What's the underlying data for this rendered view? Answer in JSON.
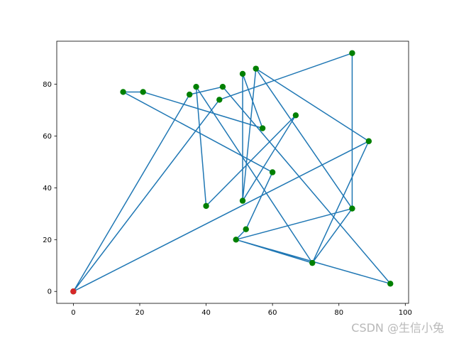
{
  "chart_data": {
    "type": "line",
    "title": "",
    "xlabel": "",
    "ylabel": "",
    "xlim": [
      -5,
      101
    ],
    "ylim": [
      -4.6,
      96.6
    ],
    "x_ticks": [
      0,
      20,
      40,
      60,
      80,
      100
    ],
    "y_ticks": [
      0,
      20,
      40,
      60,
      80
    ],
    "grid": false,
    "legend": "none",
    "series": [
      {
        "line_color": "#1f77b4",
        "point_color": "#008000",
        "points": [
          [
            0,
            0
          ],
          [
            89,
            58
          ],
          [
            72,
            11
          ],
          [
            37,
            79
          ],
          [
            40,
            33
          ],
          [
            67,
            68
          ],
          [
            51,
            35
          ],
          [
            55,
            86
          ],
          [
            84,
            32
          ],
          [
            84,
            92
          ],
          [
            44,
            74
          ],
          [
            0,
            0
          ],
          [
            35,
            76
          ],
          [
            45,
            79
          ],
          [
            95.5,
            3
          ],
          [
            49,
            20
          ],
          [
            72,
            11
          ],
          [
            84,
            32
          ],
          [
            49,
            20
          ],
          [
            52,
            24
          ],
          [
            60,
            46
          ],
          [
            15,
            77
          ],
          [
            21,
            77
          ],
          [
            57,
            63
          ],
          [
            51,
            84
          ],
          [
            51,
            35
          ],
          [
            55,
            86
          ],
          [
            89,
            58
          ]
        ]
      }
    ],
    "start_point": {
      "x": 0,
      "y": 0,
      "color": "#d62728"
    }
  },
  "watermark": "CSDN @生信小兔"
}
